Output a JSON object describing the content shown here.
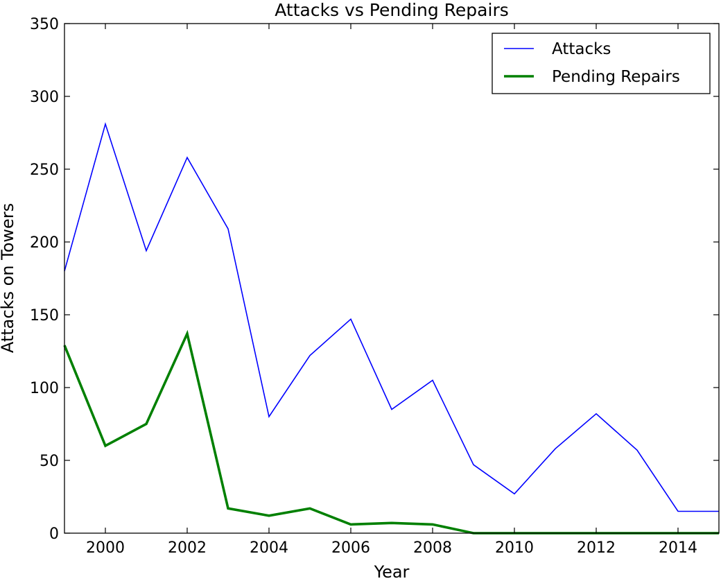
{
  "chart_data": {
    "type": "line",
    "title": "Attacks vs Pending Repairs",
    "xlabel": "Year",
    "ylabel": "Attacks on Towers",
    "xlim": [
      1999,
      2015
    ],
    "ylim": [
      0,
      350
    ],
    "x": [
      1999,
      2000,
      2001,
      2002,
      2003,
      2004,
      2005,
      2006,
      2007,
      2008,
      2009,
      2010,
      2011,
      2012,
      2013,
      2014,
      2015
    ],
    "xticks": [
      "2000",
      "2002",
      "2004",
      "2006",
      "2008",
      "2010",
      "2012",
      "2014"
    ],
    "yticks": [
      "0",
      "50",
      "100",
      "150",
      "200",
      "250",
      "300",
      "350"
    ],
    "grid": false,
    "legend_position": "top-right",
    "series": [
      {
        "name": "Attacks",
        "color": "#0000ff",
        "values": [
          180,
          281,
          194,
          258,
          209,
          80,
          122,
          147,
          85,
          105,
          47,
          27,
          58,
          82,
          57,
          15,
          15
        ]
      },
      {
        "name": "Pending Repairs",
        "color": "#008000",
        "values": [
          129,
          60,
          75,
          137,
          17,
          12,
          17,
          6,
          7,
          6,
          0,
          0,
          0,
          0,
          0,
          0,
          0
        ]
      }
    ]
  }
}
